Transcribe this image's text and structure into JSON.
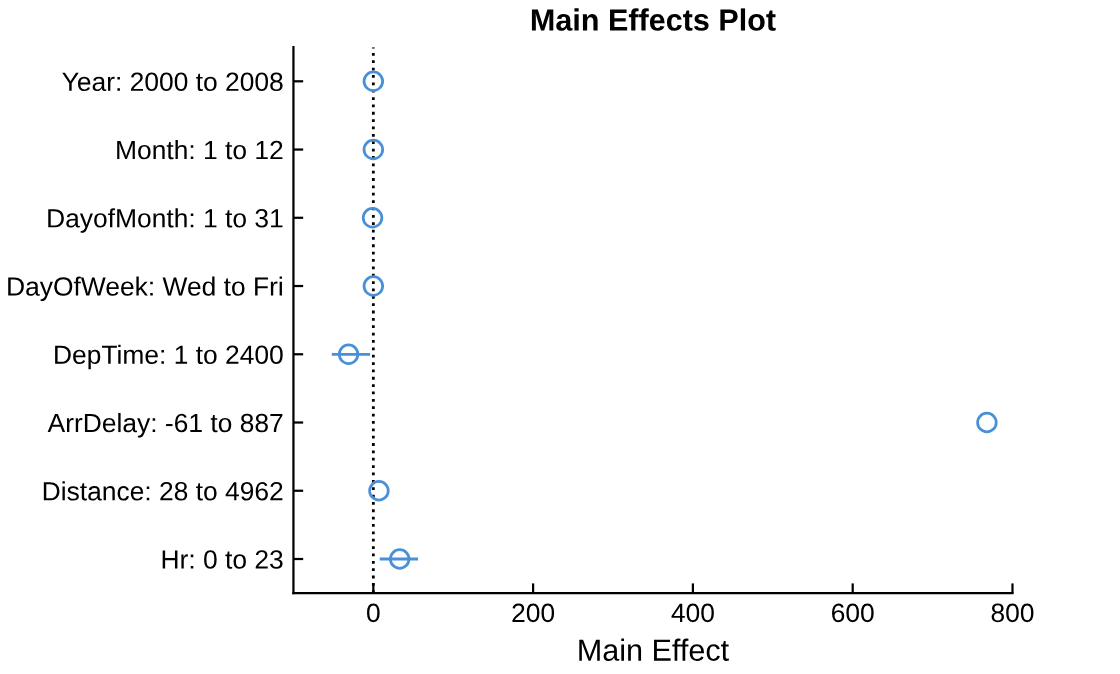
{
  "chart_data": {
    "type": "scatter",
    "title": "Main Effects Plot",
    "xlabel": "Main Effect",
    "orientation": "horizontal",
    "categories": [
      "Year: 2000 to 2008",
      "Month: 1 to 12",
      "DayofMonth: 1 to 31",
      "DayOfWeek: Wed to Fri",
      "DepTime: 1 to 2400",
      "ArrDelay: -61 to 887",
      "Distance: 28 to 4962",
      "Hr: 0 to 23"
    ],
    "series": [
      {
        "color": "#4a90d9",
        "values": [
          0,
          0,
          -1,
          0,
          -31,
          768,
          7,
          33
        ],
        "errors": [
          null,
          null,
          null,
          null,
          [
            -52,
            -4
          ],
          null,
          null,
          [
            8,
            56
          ]
        ]
      }
    ],
    "xlim": [
      -100,
      800
    ],
    "xticks": [
      0,
      200,
      400,
      600,
      800
    ],
    "marker": "circle",
    "ref_lines": [
      {
        "axis": "x",
        "value": 0,
        "color": "#000000",
        "line_style": "dotted"
      }
    ],
    "grid": false,
    "legend": false
  }
}
